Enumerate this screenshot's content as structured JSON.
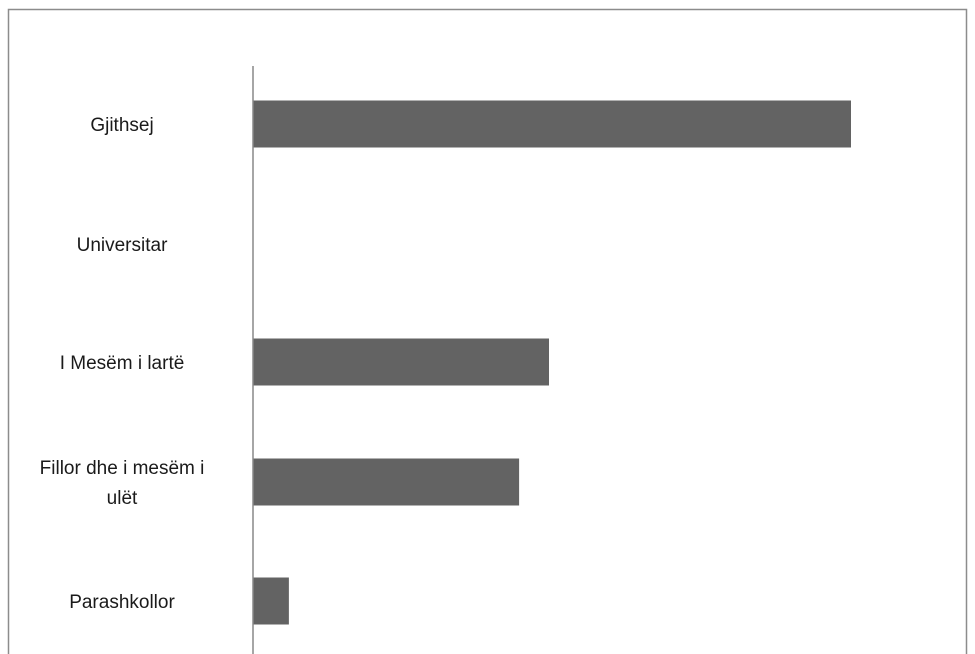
{
  "chart_data": {
    "type": "bar",
    "orientation": "horizontal",
    "categories": [
      "Gjithsej",
      "Universitar",
      "I Mesëm i lartë",
      "Fillor dhe i mesëm i ulët",
      "Parashkollor"
    ],
    "category_lines": [
      [
        "Gjithsej"
      ],
      [
        "Universitar"
      ],
      [
        "I Mesëm i lartë"
      ],
      [
        "Fillor dhe i mesëm i",
        "ulët"
      ],
      [
        "Parashkollor"
      ]
    ],
    "values": [
      100,
      0,
      49.5,
      44.5,
      6
    ],
    "xlim": [
      0,
      100
    ],
    "title": "",
    "xlabel": "",
    "ylabel": "",
    "grid": false,
    "legend": "none",
    "bar_color": "#636363",
    "axis_color": "#888888",
    "frame_color": "#8c8c8c"
  }
}
